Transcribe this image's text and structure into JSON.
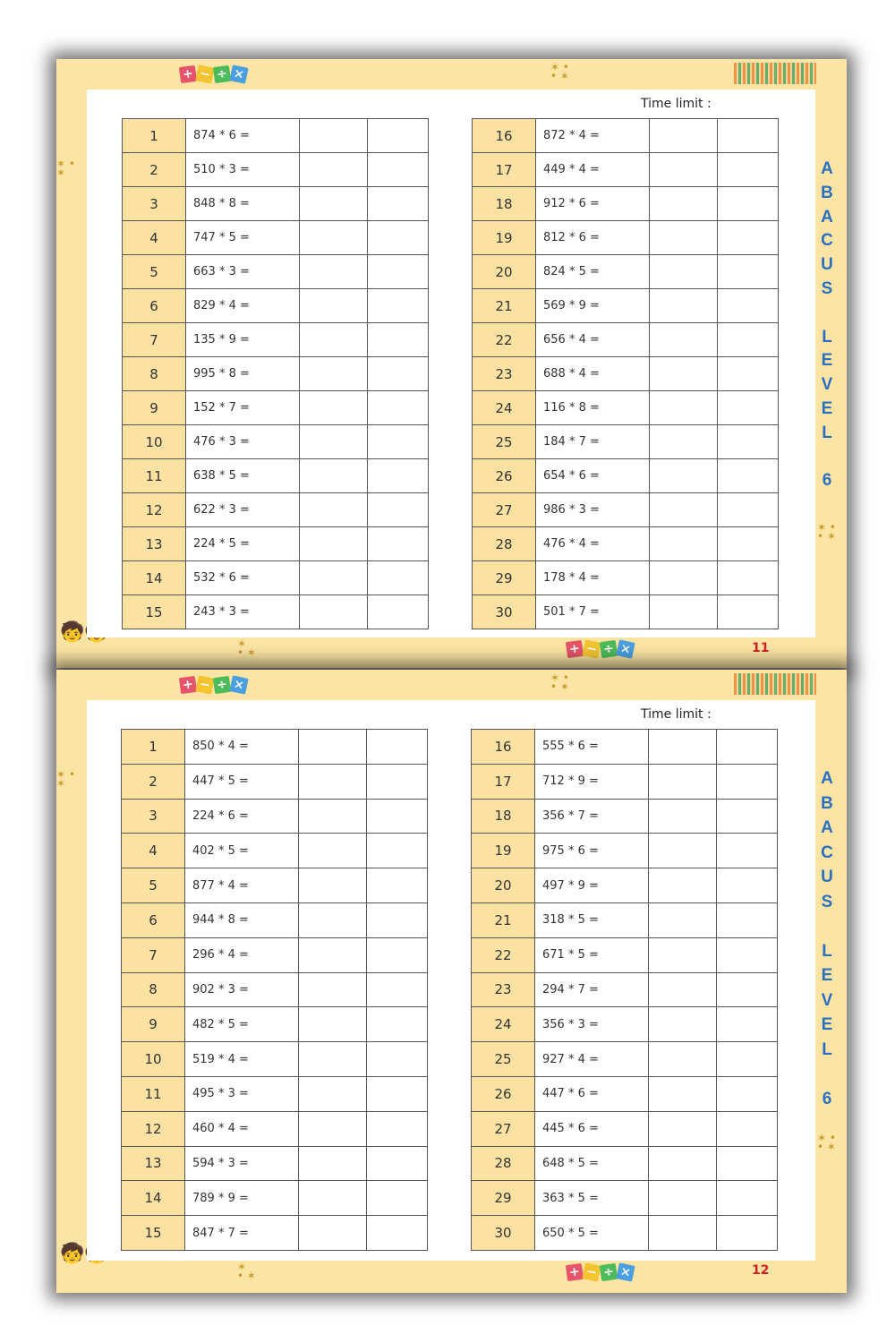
{
  "pages": [
    {
      "page_number": "11",
      "time_limit_label": "Time limit :",
      "side_label": [
        "A",
        "B",
        "A",
        "C",
        "U",
        "S",
        "",
        "L",
        "E",
        "V",
        "E",
        "L",
        "",
        "6"
      ],
      "problems": [
        "874 * 6 =",
        "510 * 3 =",
        "848 * 8 =",
        "747 * 5 =",
        "663 * 3 =",
        "829 * 4 =",
        "135 * 9 =",
        "995 * 8 =",
        "152 * 7 =",
        "476 * 3 =",
        "638 * 5 =",
        "622 * 3 =",
        "224 * 5 =",
        "532 * 6 =",
        "243 * 3 =",
        "872 * 4 =",
        "449 * 4 =",
        "912 * 6 =",
        "812 * 6 =",
        "824 * 5 =",
        "569 * 9 =",
        "656 * 4 =",
        "688 * 4 =",
        "116 * 8 =",
        "184 * 7 =",
        "654 * 6 =",
        "986 * 3 =",
        "476 * 4 =",
        "178 * 4 =",
        "501 * 7 ="
      ]
    },
    {
      "page_number": "12",
      "time_limit_label": "Time limit :",
      "side_label": [
        "A",
        "B",
        "A",
        "C",
        "U",
        "S",
        "",
        "L",
        "E",
        "V",
        "E",
        "L",
        "",
        "6"
      ],
      "problems": [
        "850 * 4 =",
        "447 * 5 =",
        "224 * 6 =",
        "402 * 5 =",
        "877 * 4 =",
        "944 * 8 =",
        "296 * 4 =",
        "902 * 3 =",
        "482 * 5 =",
        "519 * 4 =",
        "495 * 3 =",
        "460 * 4 =",
        "594 * 3 =",
        "789 * 9 =",
        "847 * 7 =",
        "555 * 6 =",
        "712 * 9 =",
        "356 * 7 =",
        "975 * 6 =",
        "497 * 9 =",
        "318 * 5 =",
        "671 * 5 =",
        "294 * 7 =",
        "356 * 3 =",
        "927 * 4 =",
        "447 * 6 =",
        "445 * 6 =",
        "648 * 5 =",
        "363 * 5 =",
        "650 * 5 ="
      ]
    }
  ],
  "decor": {
    "operators": [
      "+",
      "−",
      "÷",
      "×"
    ],
    "operator_colors": [
      "#e5546a",
      "#f4c531",
      "#4cbb5a",
      "#4a9fe0"
    ],
    "icons": [
      "math-operators-icon",
      "abacus-icon",
      "stars-icon",
      "kids-with-abacus-icon"
    ]
  },
  "colors": {
    "border": "#fbe4a4",
    "number_cell": "#fbe1a2",
    "side_label": "#2a6fc0",
    "page_number": "#d02020"
  }
}
